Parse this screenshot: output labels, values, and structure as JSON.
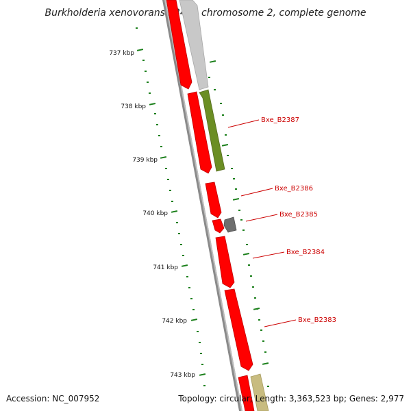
{
  "title": "Burkholderia xenovorans LB400 chromosome 2, complete genome",
  "ticks": [
    "737 kbp",
    "738 kbp",
    "739 kbp",
    "740 kbp",
    "741 kbp",
    "742 kbp",
    "743 kbp"
  ],
  "genes": [
    {
      "name": "Bxe_B2387"
    },
    {
      "name": "Bxe_B2386"
    },
    {
      "name": "Bxe_B2385"
    },
    {
      "name": "Bxe_B2384"
    },
    {
      "name": "Bxe_B2383"
    }
  ],
  "footer": {
    "accession": "Accession: NC_007952",
    "summary": "Topology: circular; Length: 3,363,523 bp; Genes: 2,977"
  },
  "colors": {
    "forward_gene": "#ff0000",
    "reverse_gene_light": "#c8c8c8",
    "reverse_gene_green": "#6b8e23",
    "reverse_gene_dark": "#707070",
    "reverse_gene_khaki": "#c8bc80",
    "backbone": "#808080",
    "tick": "#1a7f1a",
    "label": "#cc0000"
  }
}
